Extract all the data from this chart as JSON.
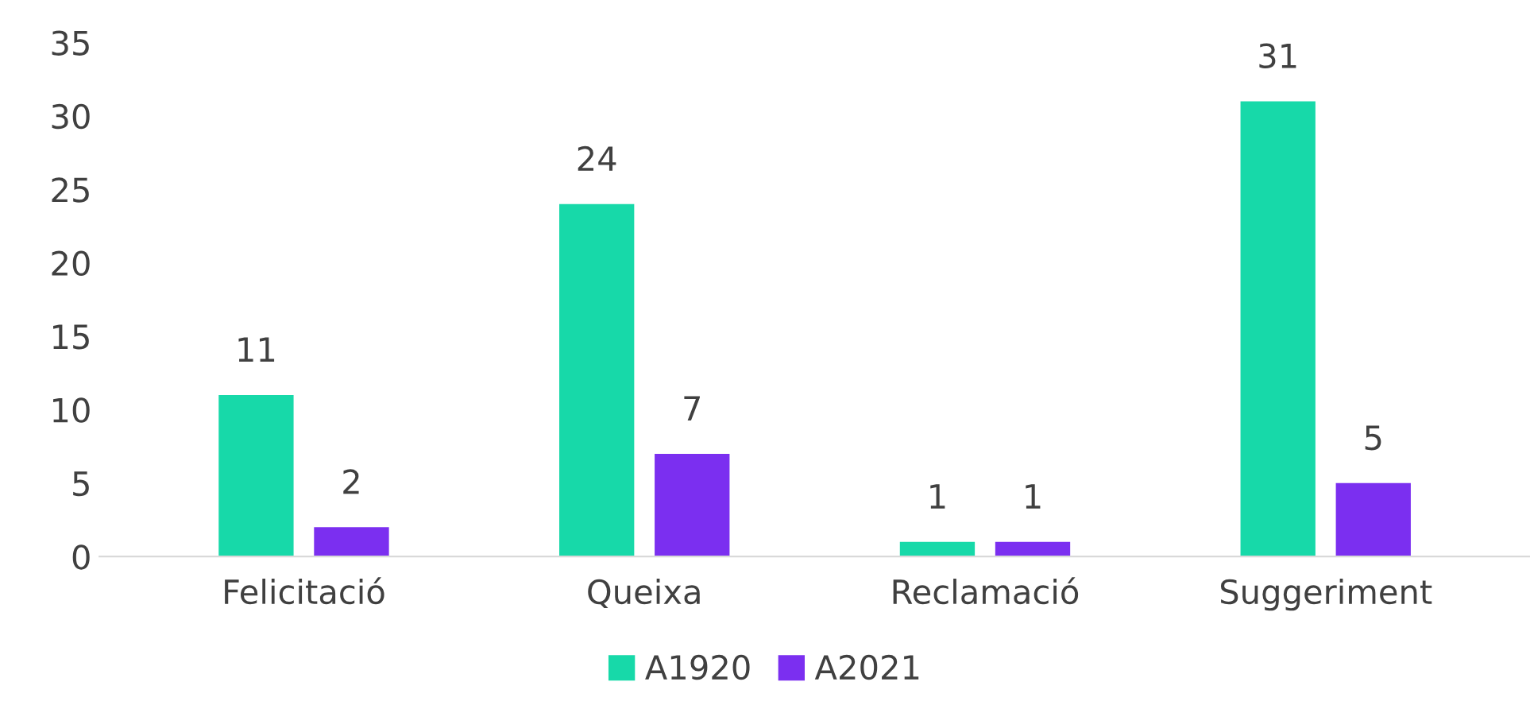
{
  "chart_data": {
    "type": "bar",
    "categories": [
      "Felicitació",
      "Queixa",
      "Reclamació",
      "Suggeriment"
    ],
    "series": [
      {
        "name": "A1920",
        "color": "#17d9a9",
        "values": [
          11,
          24,
          1,
          31
        ]
      },
      {
        "name": "A2021",
        "color": "#7b2ff0",
        "values": [
          2,
          7,
          1,
          5
        ]
      }
    ],
    "ylim": [
      0,
      35
    ],
    "yticks": [
      0,
      5,
      10,
      15,
      20,
      25,
      30,
      35
    ],
    "grid": false,
    "legend": "bottom",
    "data_labels": true
  }
}
